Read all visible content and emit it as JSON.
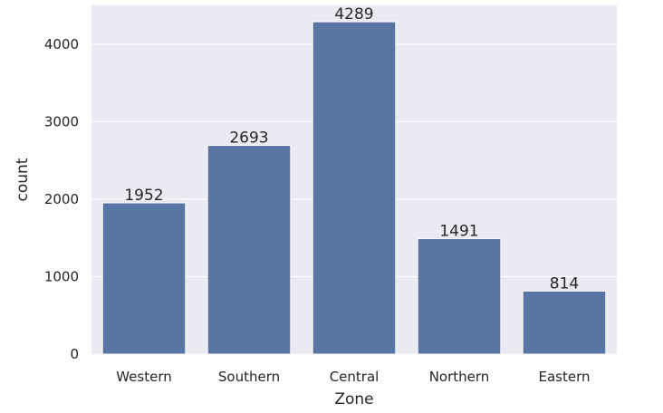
{
  "chart_data": {
    "type": "bar",
    "categories": [
      "Western",
      "Southern",
      "Central",
      "Northern",
      "Eastern"
    ],
    "values": [
      1952,
      2693,
      4289,
      1491,
      814
    ],
    "data_labels": [
      "1952",
      "2693",
      "4289",
      "1491",
      "814"
    ],
    "xlabel": "Zone",
    "ylabel": "count",
    "ylim": [
      0,
      4500
    ],
    "yticks": [
      0,
      1000,
      2000,
      3000,
      4000
    ],
    "grid": true,
    "bar_color": "#5875a4",
    "background_color": "#eaeaf2"
  }
}
